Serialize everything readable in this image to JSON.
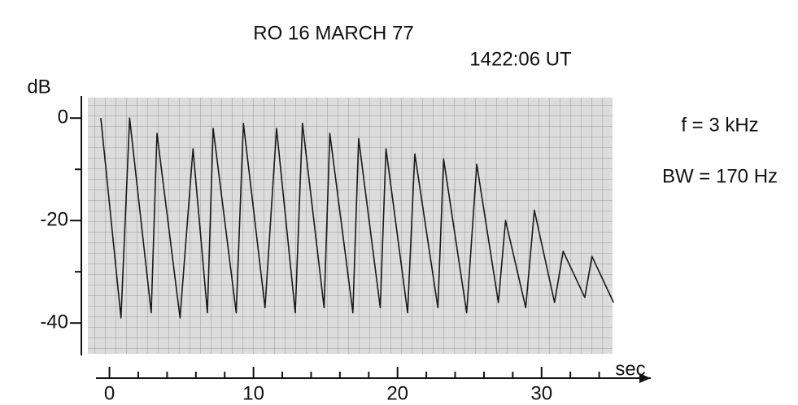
{
  "chart_data": {
    "type": "line",
    "title": "RO  16 MARCH 77",
    "subtitle": "1422:06 UT",
    "ylabel": "dB",
    "xlabel": "sec",
    "annotations": [
      "f = 3 kHz",
      "BW = 170 Hz"
    ],
    "x": [
      -0.6,
      0.8,
      1.4,
      2.9,
      3.3,
      4.9,
      5.8,
      6.8,
      7.2,
      8.8,
      9.3,
      10.8,
      11.6,
      12.9,
      13.4,
      14.9,
      15.3,
      16.9,
      17.3,
      18.8,
      19.2,
      20.7,
      21.2,
      22.8,
      23.2,
      24.8,
      25.5,
      27.0,
      27.5,
      28.9,
      29.5,
      30.9,
      31.5,
      33.0,
      33.5,
      35.0
    ],
    "series": [
      {
        "color": "#1a1a1a",
        "values": [
          0,
          -39,
          0,
          -38,
          -3,
          -39,
          -6,
          -38,
          -2,
          -38,
          -1,
          -37,
          -2,
          -38,
          -1,
          -37,
          -3,
          -38,
          -4,
          -37,
          -6,
          -38,
          -7,
          -37,
          -8,
          -38,
          -9,
          -36,
          -20,
          -37,
          -18,
          -36,
          -26,
          -35,
          -27,
          -36
        ]
      }
    ],
    "xlim": [
      -1.5,
      36
    ],
    "ylim": [
      -46,
      4
    ],
    "xticks": [
      0,
      10,
      20,
      30
    ],
    "xminor_ticks": [
      2,
      4,
      6,
      8,
      12,
      14,
      16,
      18,
      22,
      24,
      26,
      28,
      32,
      34
    ],
    "yticks": [
      0,
      -20,
      -40
    ],
    "yminor_ticks": [
      -10,
      -30
    ],
    "grid": true
  }
}
